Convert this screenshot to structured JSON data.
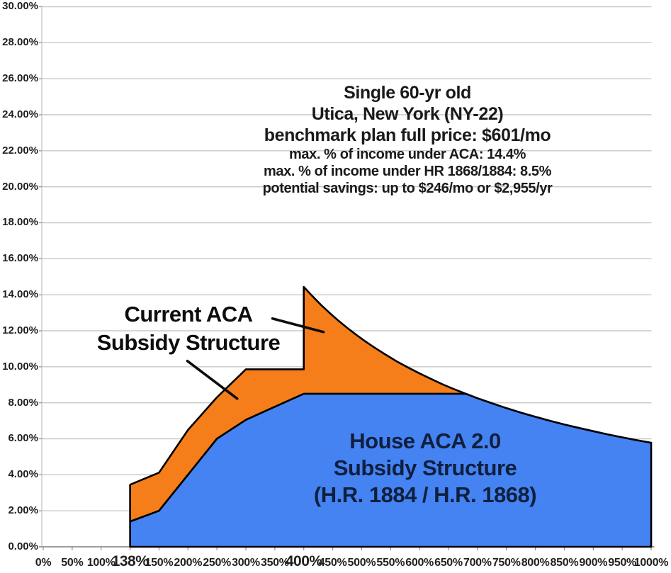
{
  "page": {
    "background": "#ffffff"
  },
  "annotation": {
    "lines": [
      "Single 60-yr old",
      "Utica, New York (NY-22)",
      "benchmark plan full price: $601/mo",
      "max. % of income under ACA: 14.4%",
      "max. % of income under HR 1868/1884: 8.5%",
      "potential savings: up to $246/mo or $2,955/yr"
    ]
  },
  "labels": {
    "current_aca": [
      "Current ACA",
      "Subsidy Structure"
    ],
    "house": [
      "House ACA 2.0",
      "Subsidy Structure",
      "(H.R. 1884 / H.R. 1868)"
    ]
  },
  "chart_data": {
    "type": "area",
    "title": "",
    "x_axis": {
      "unit": "% of Federal Poverty Level (category axis, evenly spaced ticks)",
      "tick_values": [
        0,
        50,
        100,
        138,
        150,
        200,
        250,
        300,
        350,
        400,
        450,
        500,
        550,
        600,
        650,
        700,
        750,
        800,
        850,
        900,
        950,
        1000
      ],
      "tick_labels": [
        "0%",
        "50%",
        "100%",
        "138%",
        "150%",
        "200%",
        "250%",
        "300%",
        "350%",
        "400%",
        "450%",
        "500%",
        "550%",
        "600%",
        "650%",
        "700%",
        "750%",
        "800%",
        "850%",
        "900%",
        "950%",
        "1000%"
      ],
      "emphasized_tick_labels": [
        "138%",
        "400%"
      ]
    },
    "y_axis": {
      "min": 0,
      "max": 30,
      "step": 2,
      "tick_labels": [
        "0.00%",
        "2.00%",
        "4.00%",
        "6.00%",
        "8.00%",
        "10.00%",
        "12.00%",
        "14.00%",
        "16.00%",
        "18.00%",
        "20.00%",
        "22.00%",
        "24.00%",
        "26.00%",
        "28.00%",
        "30.00%"
      ]
    },
    "grid": "horizontal",
    "legend": "in-plot text labels with callout lines",
    "series": [
      {
        "name": "Current ACA Subsidy Structure",
        "fill": "#F57E1B",
        "outline": "#000000",
        "points": [
          [
            138,
            3.45
          ],
          [
            150,
            4.12
          ],
          [
            200,
            6.49
          ],
          [
            250,
            8.3
          ],
          [
            300,
            9.86
          ],
          [
            400,
            9.86
          ],
          [
            400,
            14.44
          ],
          [
            415,
            13.92
          ],
          [
            430,
            13.43
          ],
          [
            445,
            12.98
          ],
          [
            460,
            12.56
          ],
          [
            475,
            12.16
          ],
          [
            490,
            11.79
          ],
          [
            505,
            11.44
          ],
          [
            520,
            11.11
          ],
          [
            540,
            10.7
          ],
          [
            560,
            10.31
          ],
          [
            580,
            9.96
          ],
          [
            600,
            9.63
          ],
          [
            620,
            9.32
          ],
          [
            640,
            9.02
          ],
          [
            660,
            8.75
          ],
          [
            680,
            8.5
          ],
          [
            700,
            8.25
          ],
          [
            725,
            7.97
          ],
          [
            750,
            7.7
          ],
          [
            775,
            7.45
          ],
          [
            800,
            7.22
          ],
          [
            825,
            7.0
          ],
          [
            850,
            6.79
          ],
          [
            875,
            6.6
          ],
          [
            900,
            6.42
          ],
          [
            925,
            6.24
          ],
          [
            950,
            6.08
          ],
          [
            975,
            5.92
          ],
          [
            1000,
            5.78
          ]
        ]
      },
      {
        "name": "House ACA 2.0 Subsidy Structure (H.R. 1884 / H.R. 1868)",
        "fill": "#4583F3",
        "outline": "#000000",
        "points": [
          [
            138,
            1.4
          ],
          [
            150,
            2.0
          ],
          [
            200,
            4.0
          ],
          [
            250,
            6.0
          ],
          [
            300,
            7.05
          ],
          [
            350,
            7.78
          ],
          [
            400,
            8.5
          ],
          [
            500,
            8.5
          ],
          [
            600,
            8.5
          ],
          [
            680,
            8.5
          ],
          [
            700,
            8.25
          ],
          [
            725,
            7.97
          ],
          [
            750,
            7.7
          ],
          [
            775,
            7.45
          ],
          [
            800,
            7.22
          ],
          [
            825,
            7.0
          ],
          [
            850,
            6.79
          ],
          [
            875,
            6.6
          ],
          [
            900,
            6.42
          ],
          [
            925,
            6.24
          ],
          [
            950,
            6.08
          ],
          [
            975,
            5.92
          ],
          [
            1000,
            5.78
          ]
        ]
      }
    ],
    "callouts": [
      {
        "from_pct": 346,
        "from_val": 12.68,
        "to_pct": 434,
        "to_val": 11.93
      },
      {
        "from_pct": 199,
        "from_val": 10.32,
        "to_pct": 285,
        "to_val": 8.23
      }
    ],
    "colors": {
      "grid": "#C9C9C9",
      "axis": "#8F8F8F",
      "tick_text": "#1F1F1F",
      "callout": "#0D0D0D"
    }
  }
}
